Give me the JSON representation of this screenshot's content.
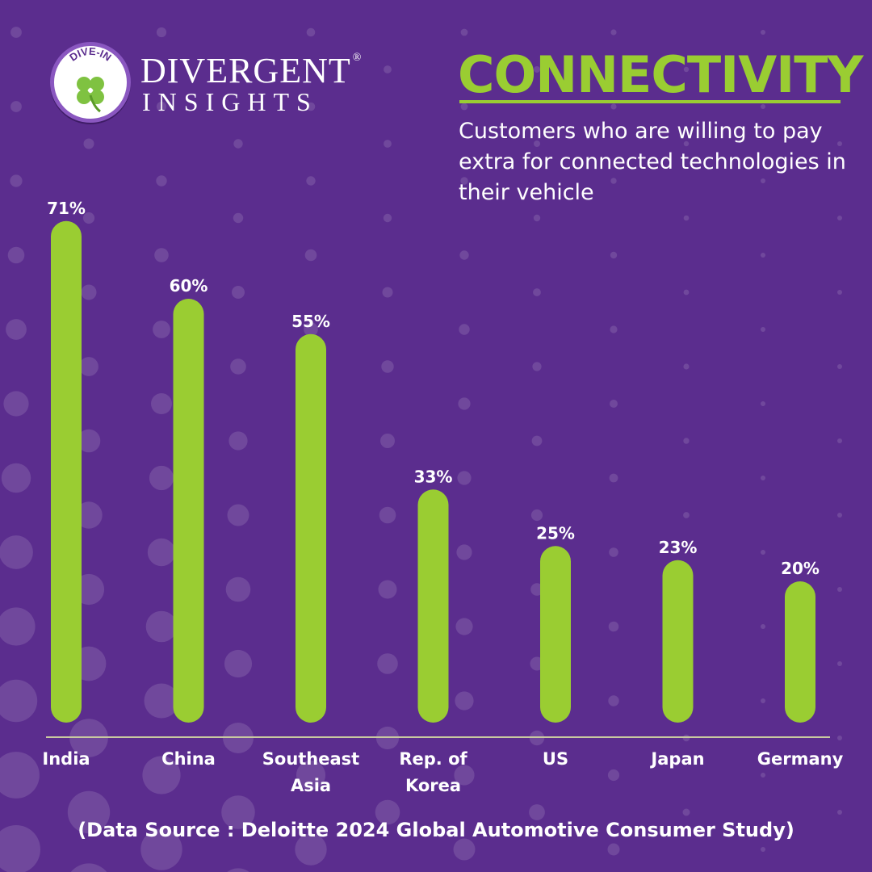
{
  "logo": {
    "badge_text": "DIVE-IN",
    "brand_line1": "DIVERGENT",
    "brand_registered": "®",
    "brand_line2": "INSIGHTS"
  },
  "header": {
    "title": "CONNECTIVITY",
    "subtitle": "Customers who are willing to pay extra for connected technologies in their vehicle"
  },
  "footer": {
    "source": "(Data Source : Deloitte 2024 Global Automotive Consumer Study)"
  },
  "colors": {
    "background": "#5b2d8e",
    "accent_green": "#9acd32",
    "dot": "#8a6aa8",
    "text": "#ffffff"
  },
  "chart_data": {
    "type": "bar",
    "categories": [
      [
        "India"
      ],
      [
        "China"
      ],
      [
        "Southeast",
        "Asia"
      ],
      [
        "Rep. of",
        "Korea"
      ],
      [
        "US"
      ],
      [
        "Japan"
      ],
      [
        "Germany"
      ]
    ],
    "values": [
      71,
      60,
      55,
      33,
      25,
      23,
      20
    ],
    "value_labels": [
      "71%",
      "60%",
      "55%",
      "33%",
      "25%",
      "23%",
      "20%"
    ],
    "title": "CONNECTIVITY",
    "subtitle": "Customers who are willing to pay extra for connected technologies in their vehicle",
    "xlabel": "",
    "ylabel": "",
    "grid": false
  }
}
